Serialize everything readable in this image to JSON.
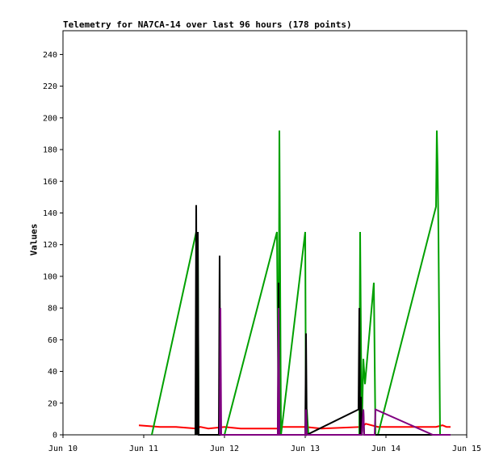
{
  "chart_data": {
    "type": "line",
    "title": "Telemetry for NA7CA-14 over last 96 hours (178 points)",
    "xlabel": "",
    "ylabel": "Values",
    "xlim": [
      0,
      5
    ],
    "ylim": [
      0,
      255
    ],
    "x_ticks": [
      {
        "value": 0,
        "label": "Jun 10"
      },
      {
        "value": 1,
        "label": "Jun 11"
      },
      {
        "value": 2,
        "label": "Jun 12"
      },
      {
        "value": 3,
        "label": "Jun 13"
      },
      {
        "value": 4,
        "label": "Jun 14"
      },
      {
        "value": 5,
        "label": "Jun 15"
      }
    ],
    "y_ticks": [
      0,
      20,
      40,
      60,
      80,
      100,
      120,
      140,
      160,
      180,
      200,
      220,
      240
    ],
    "grid": false,
    "legend": "none",
    "series": [
      {
        "color": "#ff0000",
        "points": [
          [
            0.94,
            6
          ],
          [
            1.2,
            5
          ],
          [
            1.4,
            5
          ],
          [
            1.65,
            4
          ],
          [
            1.7,
            5
          ],
          [
            1.8,
            4
          ],
          [
            2.0,
            5
          ],
          [
            2.2,
            4
          ],
          [
            2.5,
            4
          ],
          [
            2.65,
            4
          ],
          [
            2.7,
            5
          ],
          [
            2.8,
            5
          ],
          [
            3.0,
            5
          ],
          [
            3.2,
            4
          ],
          [
            3.7,
            5
          ],
          [
            3.75,
            7
          ],
          [
            3.9,
            5
          ],
          [
            4.2,
            5
          ],
          [
            4.5,
            5
          ],
          [
            4.62,
            5
          ],
          [
            4.7,
            6
          ],
          [
            4.75,
            5
          ],
          [
            4.8,
            5
          ]
        ]
      },
      {
        "color": "#00a000",
        "points": [
          [
            1.1,
            0
          ],
          [
            1.65,
            128
          ],
          [
            1.66,
            64
          ],
          [
            1.67,
            128
          ],
          [
            1.68,
            0
          ],
          [
            1.93,
            0
          ],
          [
            2.0,
            0
          ],
          [
            2.65,
            128
          ],
          [
            2.67,
            0
          ],
          [
            2.68,
            192
          ],
          [
            2.7,
            0
          ],
          [
            3.0,
            128
          ],
          [
            3.01,
            0
          ],
          [
            3.02,
            16
          ],
          [
            3.04,
            0
          ],
          [
            3.67,
            0
          ],
          [
            3.68,
            128
          ],
          [
            3.69,
            64
          ],
          [
            3.7,
            0
          ],
          [
            3.72,
            48
          ],
          [
            3.74,
            32
          ],
          [
            3.85,
            96
          ],
          [
            3.87,
            0
          ],
          [
            3.9,
            0
          ],
          [
            4.62,
            144
          ],
          [
            4.63,
            192
          ],
          [
            4.64,
            168
          ],
          [
            4.65,
            128
          ],
          [
            4.66,
            64
          ],
          [
            4.67,
            0
          ]
        ]
      },
      {
        "color": "#000000",
        "points": [
          [
            1.64,
            0
          ],
          [
            1.65,
            145
          ],
          [
            1.66,
            0
          ],
          [
            1.67,
            128
          ],
          [
            1.68,
            0
          ],
          [
            1.93,
            0
          ],
          [
            1.94,
            113
          ],
          [
            1.95,
            0
          ],
          [
            2.66,
            0
          ],
          [
            2.67,
            96
          ],
          [
            2.68,
            0
          ],
          [
            3.0,
            0
          ],
          [
            3.01,
            64
          ],
          [
            3.02,
            0
          ],
          [
            3.66,
            16
          ],
          [
            3.67,
            80
          ],
          [
            3.68,
            0
          ],
          [
            3.69,
            24
          ],
          [
            3.7,
            0
          ],
          [
            3.72,
            16
          ],
          [
            3.73,
            0
          ],
          [
            3.85,
            0
          ],
          [
            3.9,
            0
          ],
          [
            4.8,
            0
          ]
        ]
      },
      {
        "color": "#800080",
        "points": [
          [
            1.94,
            0
          ],
          [
            1.95,
            80
          ],
          [
            1.96,
            0
          ],
          [
            2.66,
            0
          ],
          [
            2.67,
            80
          ],
          [
            2.68,
            0
          ],
          [
            3.0,
            0
          ],
          [
            3.01,
            16
          ],
          [
            3.02,
            0
          ],
          [
            3.7,
            0
          ],
          [
            3.72,
            16
          ],
          [
            3.73,
            0
          ],
          [
            3.86,
            0
          ],
          [
            3.87,
            16
          ],
          [
            4.58,
            0
          ],
          [
            4.8,
            0
          ]
        ]
      }
    ]
  }
}
